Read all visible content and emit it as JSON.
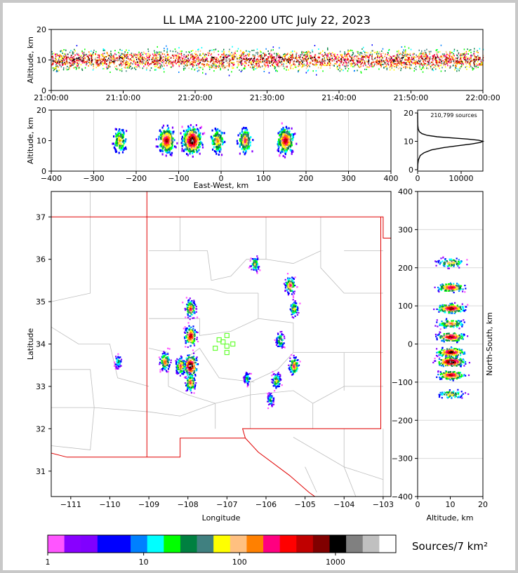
{
  "title": "LL LMA 2100-2200 UTC July 22, 2023",
  "colors": {
    "frame": "#c8c8c8",
    "axis": "#000000",
    "grid": "#d9d9d9",
    "county_lines": "#bdbdbd",
    "state_lines": "#e00000",
    "station_markers": "#66ff33"
  },
  "chart_data": [
    {
      "type": "heatmap",
      "name_hint": "altitude_vs_time",
      "ylabel": "Altitude, km",
      "xlim": [
        "21:00:00",
        "22:00:00"
      ],
      "ylim": [
        0,
        20
      ],
      "x_ticks": [
        "21:00:00",
        "21:10:00",
        "21:20:00",
        "21:30:00",
        "21:40:00",
        "21:50:00",
        "22:00:00"
      ],
      "y_ticks": [
        0,
        10,
        20
      ],
      "core_altitude_km": 10
    },
    {
      "type": "heatmap",
      "name_hint": "altitude_vs_east_west",
      "xlabel": "East-West, km",
      "ylabel": "Altitude, km",
      "xlim": [
        -400,
        400
      ],
      "ylim": [
        0,
        20
      ],
      "x_ticks": [
        -400,
        -300,
        -200,
        -100,
        0,
        100,
        200,
        300,
        400
      ],
      "y_ticks": [
        0,
        10,
        20
      ],
      "clusters_ew_km": [
        -240,
        -130,
        -70,
        -10,
        55,
        150
      ]
    },
    {
      "type": "line",
      "name_hint": "altitude_histogram",
      "annotation": "210,799 sources",
      "xlim": [
        0,
        15000
      ],
      "ylim": [
        0,
        20
      ],
      "x_ticks": [
        0,
        10000
      ],
      "y_ticks": [
        0,
        10,
        20
      ],
      "peak": {
        "count": 15000,
        "altitude_km": 10
      },
      "x": [
        0,
        50,
        200,
        600,
        1500,
        3200,
        6000,
        9500,
        12500,
        14400,
        15000,
        14000,
        11500,
        8000,
        4500,
        2200,
        1000,
        400,
        150,
        50,
        10,
        0
      ],
      "y": [
        0,
        2,
        3.5,
        5,
        6,
        7,
        7.8,
        8.5,
        9.1,
        9.6,
        10,
        10.4,
        10.8,
        11.2,
        11.6,
        12.1,
        12.7,
        13.4,
        14.3,
        15.5,
        17,
        20
      ]
    },
    {
      "type": "scatter",
      "name_hint": "plan_view_map",
      "xlabel": "Longitude",
      "ylabel": "Latitude",
      "xlim": [
        -111.5,
        -102.8
      ],
      "ylim": [
        30.4,
        37.6
      ],
      "x_ticks": [
        -111,
        -110,
        -109,
        -108,
        -107,
        -106,
        -105,
        -104,
        -103
      ],
      "y_ticks": [
        31,
        32,
        33,
        34,
        35,
        36,
        37
      ],
      "stations": [
        {
          "lon": -107.0,
          "lat": 34.2
        },
        {
          "lon": -107.2,
          "lat": 34.1
        },
        {
          "lon": -107.0,
          "lat": 33.95
        },
        {
          "lon": -106.85,
          "lat": 34.0
        },
        {
          "lon": -107.3,
          "lat": 33.9
        },
        {
          "lon": -107.0,
          "lat": 33.8
        },
        {
          "lon": -107.1,
          "lat": 34.05
        }
      ],
      "storm_cells": [
        {
          "lon": -107.95,
          "lat": 33.5,
          "intensity": 5
        },
        {
          "lon": -108.2,
          "lat": 33.5,
          "intensity": 3
        },
        {
          "lon": -107.95,
          "lat": 34.2,
          "intensity": 4
        },
        {
          "lon": -107.95,
          "lat": 34.85,
          "intensity": 3
        },
        {
          "lon": -108.6,
          "lat": 33.6,
          "intensity": 3
        },
        {
          "lon": -105.4,
          "lat": 35.4,
          "intensity": 3
        },
        {
          "lon": -105.3,
          "lat": 33.5,
          "intensity": 3
        },
        {
          "lon": -105.65,
          "lat": 34.1,
          "intensity": 2
        },
        {
          "lon": -106.3,
          "lat": 35.9,
          "intensity": 2
        },
        {
          "lon": -109.8,
          "lat": 33.6,
          "intensity": 1
        },
        {
          "lon": -105.3,
          "lat": 34.85,
          "intensity": 2
        },
        {
          "lon": -105.75,
          "lat": 33.15,
          "intensity": 2
        },
        {
          "lon": -106.5,
          "lat": 33.2,
          "intensity": 1
        },
        {
          "lon": -105.9,
          "lat": 32.7,
          "intensity": 1
        },
        {
          "lon": -107.95,
          "lat": 33.1,
          "intensity": 3
        }
      ]
    },
    {
      "type": "heatmap",
      "name_hint": "north_south_vs_altitude",
      "xlabel": "Altitude, km",
      "ylabel": "North-South, km",
      "xlim": [
        0,
        20
      ],
      "ylim": [
        -400,
        400
      ],
      "x_ticks": [
        0,
        10,
        20
      ],
      "y_ticks": [
        -400,
        -300,
        -200,
        -100,
        0,
        100,
        200,
        300,
        400
      ],
      "clusters_ns_km": [
        215,
        150,
        95,
        55,
        20,
        -20,
        -45,
        -80,
        -130
      ]
    },
    {
      "type": "table",
      "name_hint": "colorbar",
      "label": "Sources/7 km²",
      "tick_labels": [
        "1",
        "10",
        "100",
        "1000"
      ],
      "colors": [
        "#ff55ff",
        "#8800ff",
        "#8000ff",
        "#0000ff",
        "#0000ff",
        "#0080ff",
        "#00ffff",
        "#00ff00",
        "#008040",
        "#408080",
        "#ffff00",
        "#ffc080",
        "#ff8000",
        "#ff0080",
        "#ff0000",
        "#c00000",
        "#800000",
        "#000000",
        "#808080",
        "#c0c0c0",
        "#ffffff"
      ]
    }
  ]
}
